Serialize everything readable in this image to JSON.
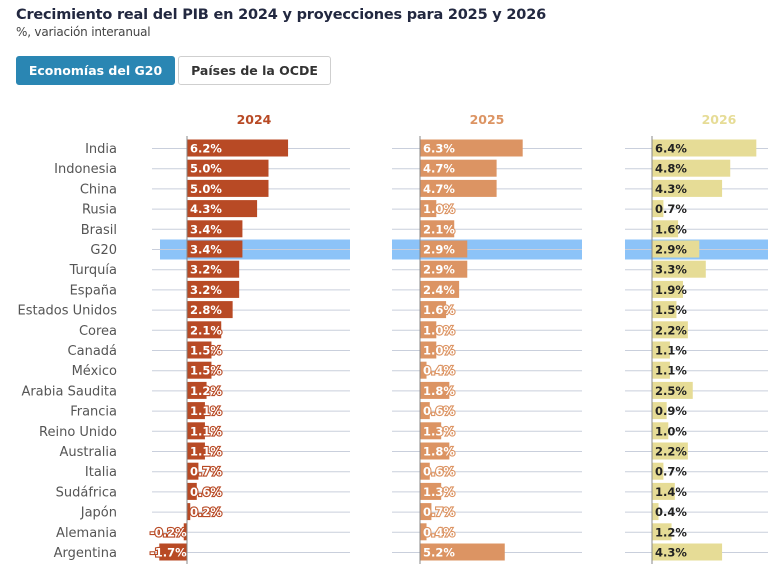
{
  "header": {
    "title": "Crecimiento real del PIB en 2024 y proyecciones para 2025 y 2026",
    "subtitle": "%, variación interanual"
  },
  "toggle": {
    "active_label": "Economías del G20",
    "inactive_label": "Países de la OCDE"
  },
  "colors": {
    "y2024": "#b84a25",
    "y2025": "#dc9463",
    "y2026": "#e6dc96",
    "y2024_label": "#b84a25",
    "y2025_label": "#dc9463",
    "y2026_label": "#e6dc96",
    "highlight": "#8cc3f8",
    "grid": "#c9cfdc",
    "axis": "#888888"
  },
  "chart_data": {
    "type": "bar",
    "orientation": "horizontal",
    "title": "Crecimiento real del PIB en 2024 y proyecciones para 2025 y 2026",
    "subtitle": "%, variación interanual",
    "highlighted_category": "G20",
    "categories": [
      "India",
      "Indonesia",
      "China",
      "Rusia",
      "Brasil",
      "G20",
      "Turquía",
      "España",
      "Estados Unidos",
      "Corea",
      "Canadá",
      "México",
      "Arabia Saudita",
      "Francia",
      "Reino Unido",
      "Australia",
      "Italia",
      "Sudáfrica",
      "Japón",
      "Alemania",
      "Argentina"
    ],
    "series": [
      {
        "name": "2024",
        "values": [
          6.2,
          5.0,
          5.0,
          4.3,
          3.4,
          3.4,
          3.2,
          3.2,
          2.8,
          2.1,
          1.5,
          1.5,
          1.2,
          1.1,
          1.1,
          1.1,
          0.7,
          0.6,
          0.2,
          -0.2,
          -1.7
        ]
      },
      {
        "name": "2025",
        "values": [
          6.3,
          4.7,
          4.7,
          1.0,
          2.1,
          2.9,
          2.9,
          2.4,
          1.6,
          1.0,
          1.0,
          0.4,
          1.8,
          0.6,
          1.3,
          1.8,
          0.6,
          1.3,
          0.7,
          0.4,
          5.2
        ]
      },
      {
        "name": "2026",
        "values": [
          6.4,
          4.8,
          4.3,
          0.7,
          1.6,
          2.9,
          3.3,
          1.9,
          1.5,
          2.2,
          1.1,
          1.1,
          2.5,
          0.9,
          1.0,
          2.2,
          0.7,
          1.4,
          0.4,
          1.2,
          4.3
        ]
      }
    ],
    "value_suffix": "%",
    "xlabel": "",
    "ylabel": "",
    "grid": true,
    "legend": "none (year headings above each panel)"
  }
}
